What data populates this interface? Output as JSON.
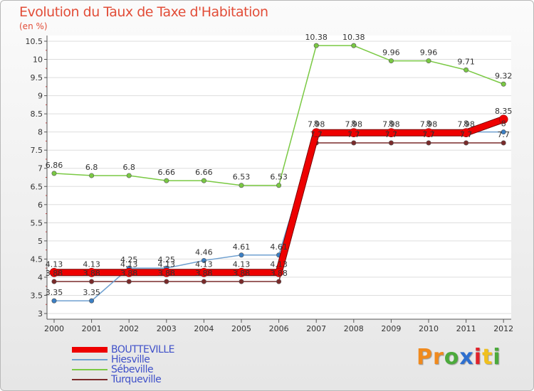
{
  "title": "Evolution du Taux de Taxe d'Habitation",
  "subtitle": "(en %)",
  "brand": {
    "text": "Proxiti",
    "colors": [
      "#f08a1e",
      "#f08a1e",
      "#4caa3c",
      "#2e6fcf",
      "#e0222a",
      "#f0c01e",
      "#4caa3c"
    ]
  },
  "chart_data": {
    "type": "line",
    "title": "Evolution du Taux de Taxe d'Habitation",
    "ylabel": "(en %)",
    "ylim": [
      3,
      10.5
    ],
    "yticks": [
      "3",
      "3.5",
      "4",
      "4.5",
      "5",
      "5.5",
      "6",
      "6.5",
      "7",
      "7.5",
      "8",
      "8.5",
      "9",
      "9.5",
      "10",
      "10.5"
    ],
    "categories": [
      "2000",
      "2001",
      "2002",
      "2003",
      "2004",
      "2005",
      "2006",
      "2007",
      "2008",
      "2009",
      "2010",
      "2011",
      "2012"
    ],
    "legend_position": "bottom-left",
    "series": [
      {
        "name": "Sébeville",
        "color": "#7ac943",
        "marker": "#7ac943",
        "width": 1.5,
        "labelsAbove": true,
        "values": [
          6.86,
          6.8,
          6.8,
          6.66,
          6.66,
          6.53,
          6.53,
          10.38,
          10.38,
          9.96,
          9.96,
          9.71,
          9.32
        ],
        "labels": [
          "6.86",
          "6.8",
          "6.8",
          "6.66",
          "6.66",
          "6.53",
          "6.53",
          "10.38",
          "10.38",
          "9.96",
          "9.96",
          "9.71",
          "9.32"
        ]
      },
      {
        "name": "Turqueville",
        "color": "#7a2a2a",
        "marker": "#7a2a2a",
        "width": 1.5,
        "labelsAbove": true,
        "values": [
          3.88,
          3.88,
          3.88,
          3.88,
          3.88,
          3.88,
          3.88,
          7.7,
          7.7,
          7.7,
          7.7,
          7.7,
          7.7
        ],
        "labels": [
          "3.88",
          "3.88",
          "3.88",
          "3.88",
          "3.88",
          "3.88",
          "3.88",
          "7.7",
          "7.7",
          "7.7",
          "7.7",
          "7.7",
          "7.7"
        ]
      },
      {
        "name": "Hiesville",
        "color": "#6fa0d0",
        "marker": "#3b7fc4",
        "width": 1.5,
        "labelsAbove": true,
        "values": [
          3.35,
          3.35,
          4.25,
          4.25,
          4.46,
          4.61,
          4.61,
          8,
          8,
          8,
          8,
          8,
          8
        ],
        "labels": [
          "3.35",
          "3.35",
          "4.25",
          "4.25",
          "4.46",
          "4.61",
          "4.61",
          "8",
          "8",
          "8",
          "8",
          "8",
          "8"
        ]
      },
      {
        "name": "BOUTTEVILLE",
        "color": "#ee0000",
        "marker": "#ee0000",
        "width": 8,
        "labelsAbove": true,
        "values": [
          4.13,
          4.13,
          4.13,
          4.13,
          4.13,
          4.13,
          4.13,
          7.98,
          7.98,
          7.98,
          7.98,
          7.98,
          8.35
        ],
        "labels": [
          "4.13",
          "4.13",
          "4.13",
          "4.13",
          "4.13",
          "4.13",
          "4.13",
          "7.98",
          "7.98",
          "7.98",
          "7.98",
          "7.98",
          "8.35"
        ]
      }
    ],
    "legend": [
      {
        "name": "BOUTTEVILLE",
        "color": "#ee0000",
        "thickness": 8
      },
      {
        "name": "Hiesville",
        "color": "#6fa0d0",
        "thickness": 2
      },
      {
        "name": "Sébeville",
        "color": "#7ac943",
        "thickness": 2
      },
      {
        "name": "Turqueville",
        "color": "#7a2a2a",
        "thickness": 2
      }
    ]
  }
}
